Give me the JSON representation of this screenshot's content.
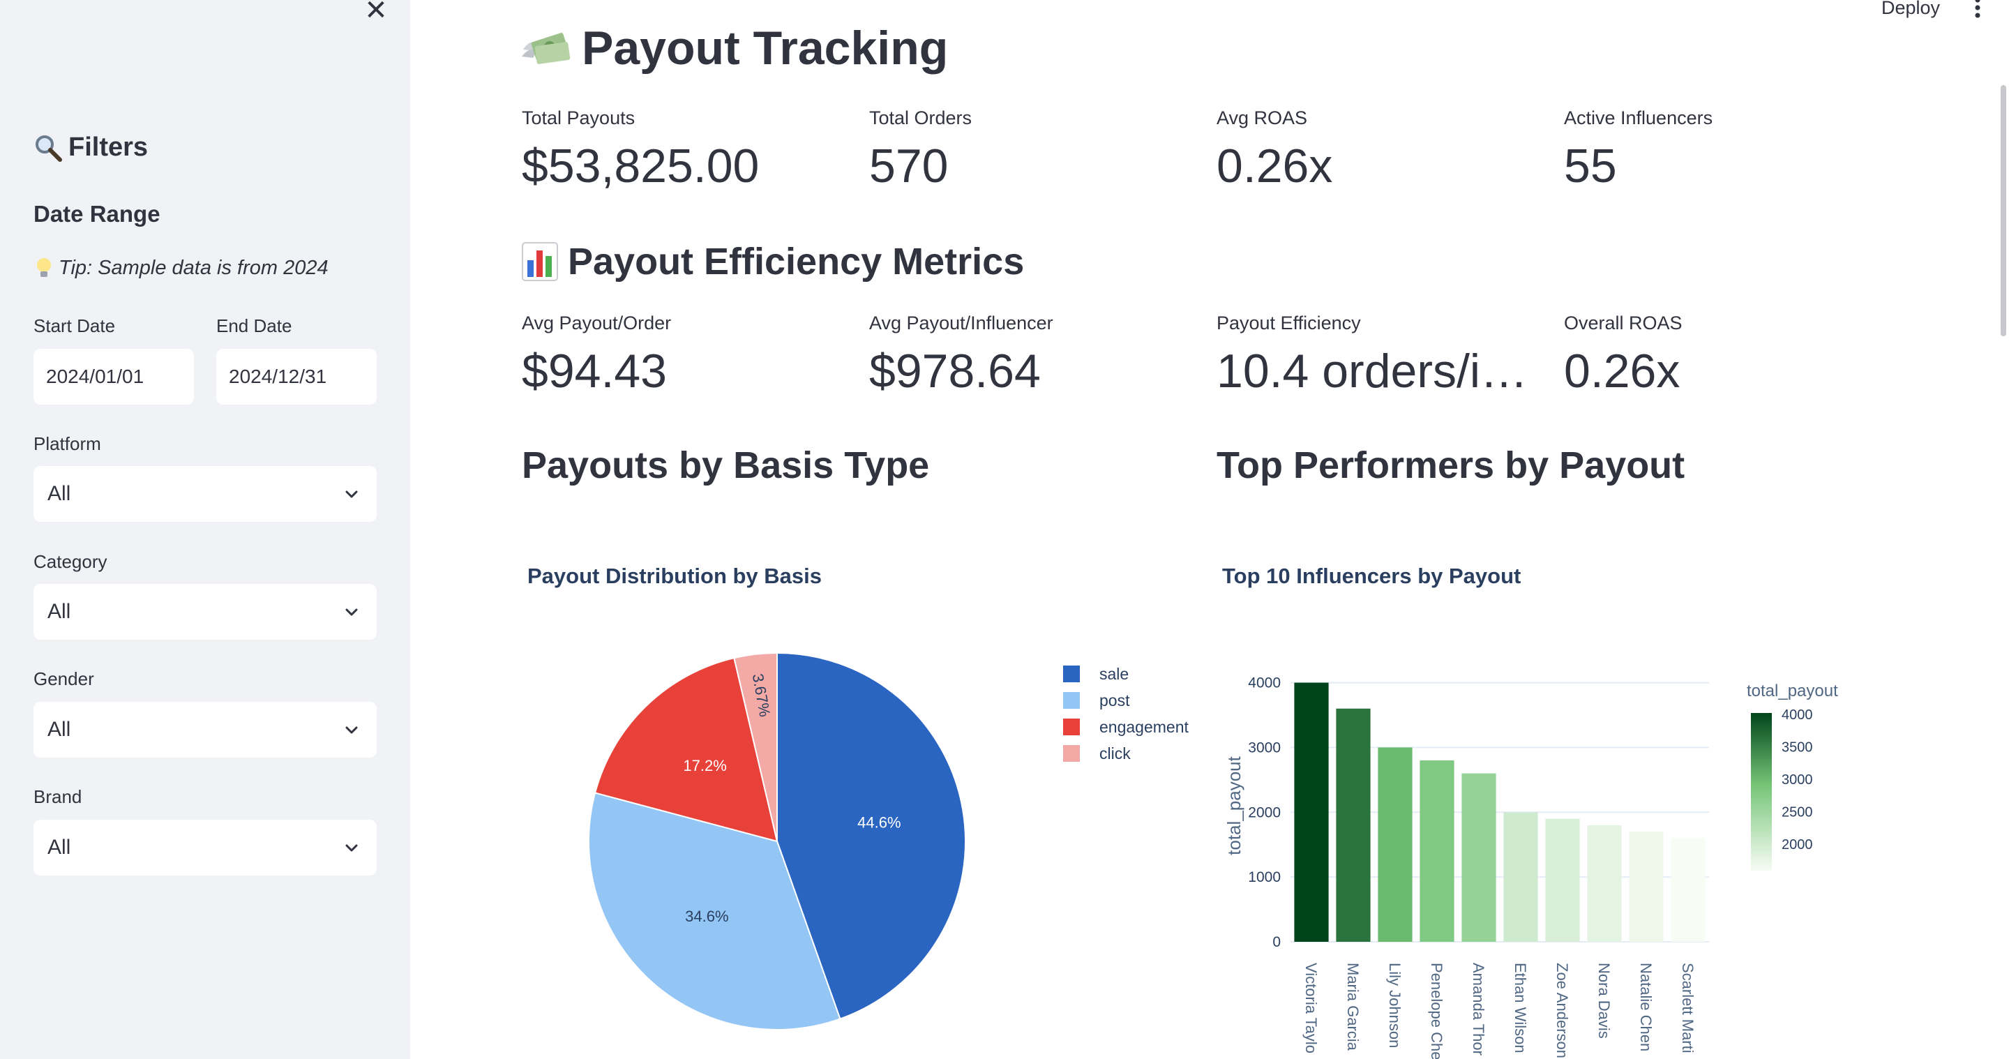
{
  "sidebar": {
    "filters_title": "Filters",
    "date_range_title": "Date Range",
    "tip": "Tip: Sample data is from 2024",
    "start_date_label": "Start Date",
    "start_date_value": "2024/01/01",
    "end_date_label": "End Date",
    "end_date_value": "2024/12/31",
    "platform_label": "Platform",
    "platform_value": "All",
    "category_label": "Category",
    "category_value": "All",
    "gender_label": "Gender",
    "gender_value": "All",
    "brand_label": "Brand",
    "brand_value": "All"
  },
  "header": {
    "deploy_label": "Deploy"
  },
  "main": {
    "title": "Payout Tracking",
    "metrics": [
      {
        "label": "Total Payouts",
        "value": "$53,825.00"
      },
      {
        "label": "Total Orders",
        "value": "570"
      },
      {
        "label": "Avg ROAS",
        "value": "0.26x"
      },
      {
        "label": "Active Influencers",
        "value": "55"
      }
    ],
    "efficiency_title": "Payout Efficiency Metrics",
    "efficiency_metrics": [
      {
        "label": "Avg Payout/Order",
        "value": "$94.43"
      },
      {
        "label": "Avg Payout/Influencer",
        "value": "$978.64"
      },
      {
        "label": "Payout Efficiency",
        "value": "10.4 orders/i…"
      },
      {
        "label": "Overall ROAS",
        "value": "0.26x"
      }
    ],
    "basis_section_title": "Payouts by Basis Type",
    "top_section_title": "Top Performers by Payout"
  },
  "colors": {
    "accent": "#31333f",
    "sidebar_bg": "#f0f2f6",
    "pie": [
      "#2a65c1",
      "#93c5f5",
      "#e8413a",
      "#f3aaa6"
    ]
  },
  "chart_data": [
    {
      "type": "pie",
      "title": "Payout Distribution by Basis",
      "labels": [
        "sale",
        "post",
        "engagement",
        "click"
      ],
      "values": [
        44.6,
        34.6,
        17.2,
        3.67
      ],
      "value_labels": [
        "44.6%",
        "34.6%",
        "17.2%",
        "3.67%"
      ],
      "legend": "top-right"
    },
    {
      "type": "bar",
      "title": "Top 10 Influencers by Payout",
      "ylabel": "total_payout",
      "categories": [
        "Victoria Taylo",
        "Maria Garcia",
        "Lily Johnson",
        "Penelope Che",
        "Amanda Thor",
        "Ethan Wilson",
        "Zoe Anderson",
        "Nora Davis",
        "Natalie Chen",
        "Scarlett Marti"
      ],
      "values": [
        4000,
        3600,
        3000,
        2800,
        2600,
        2000,
        1900,
        1800,
        1700,
        1600
      ],
      "ylim": [
        0,
        4200
      ],
      "yticks": [
        "0",
        "1000",
        "2000",
        "3000",
        "4000"
      ],
      "grid": true,
      "colorbar": {
        "title": "total_payout",
        "ticks": [
          "4000",
          "3500",
          "3000",
          "2500",
          "2000"
        ],
        "range": [
          1600,
          4000
        ]
      }
    }
  ]
}
